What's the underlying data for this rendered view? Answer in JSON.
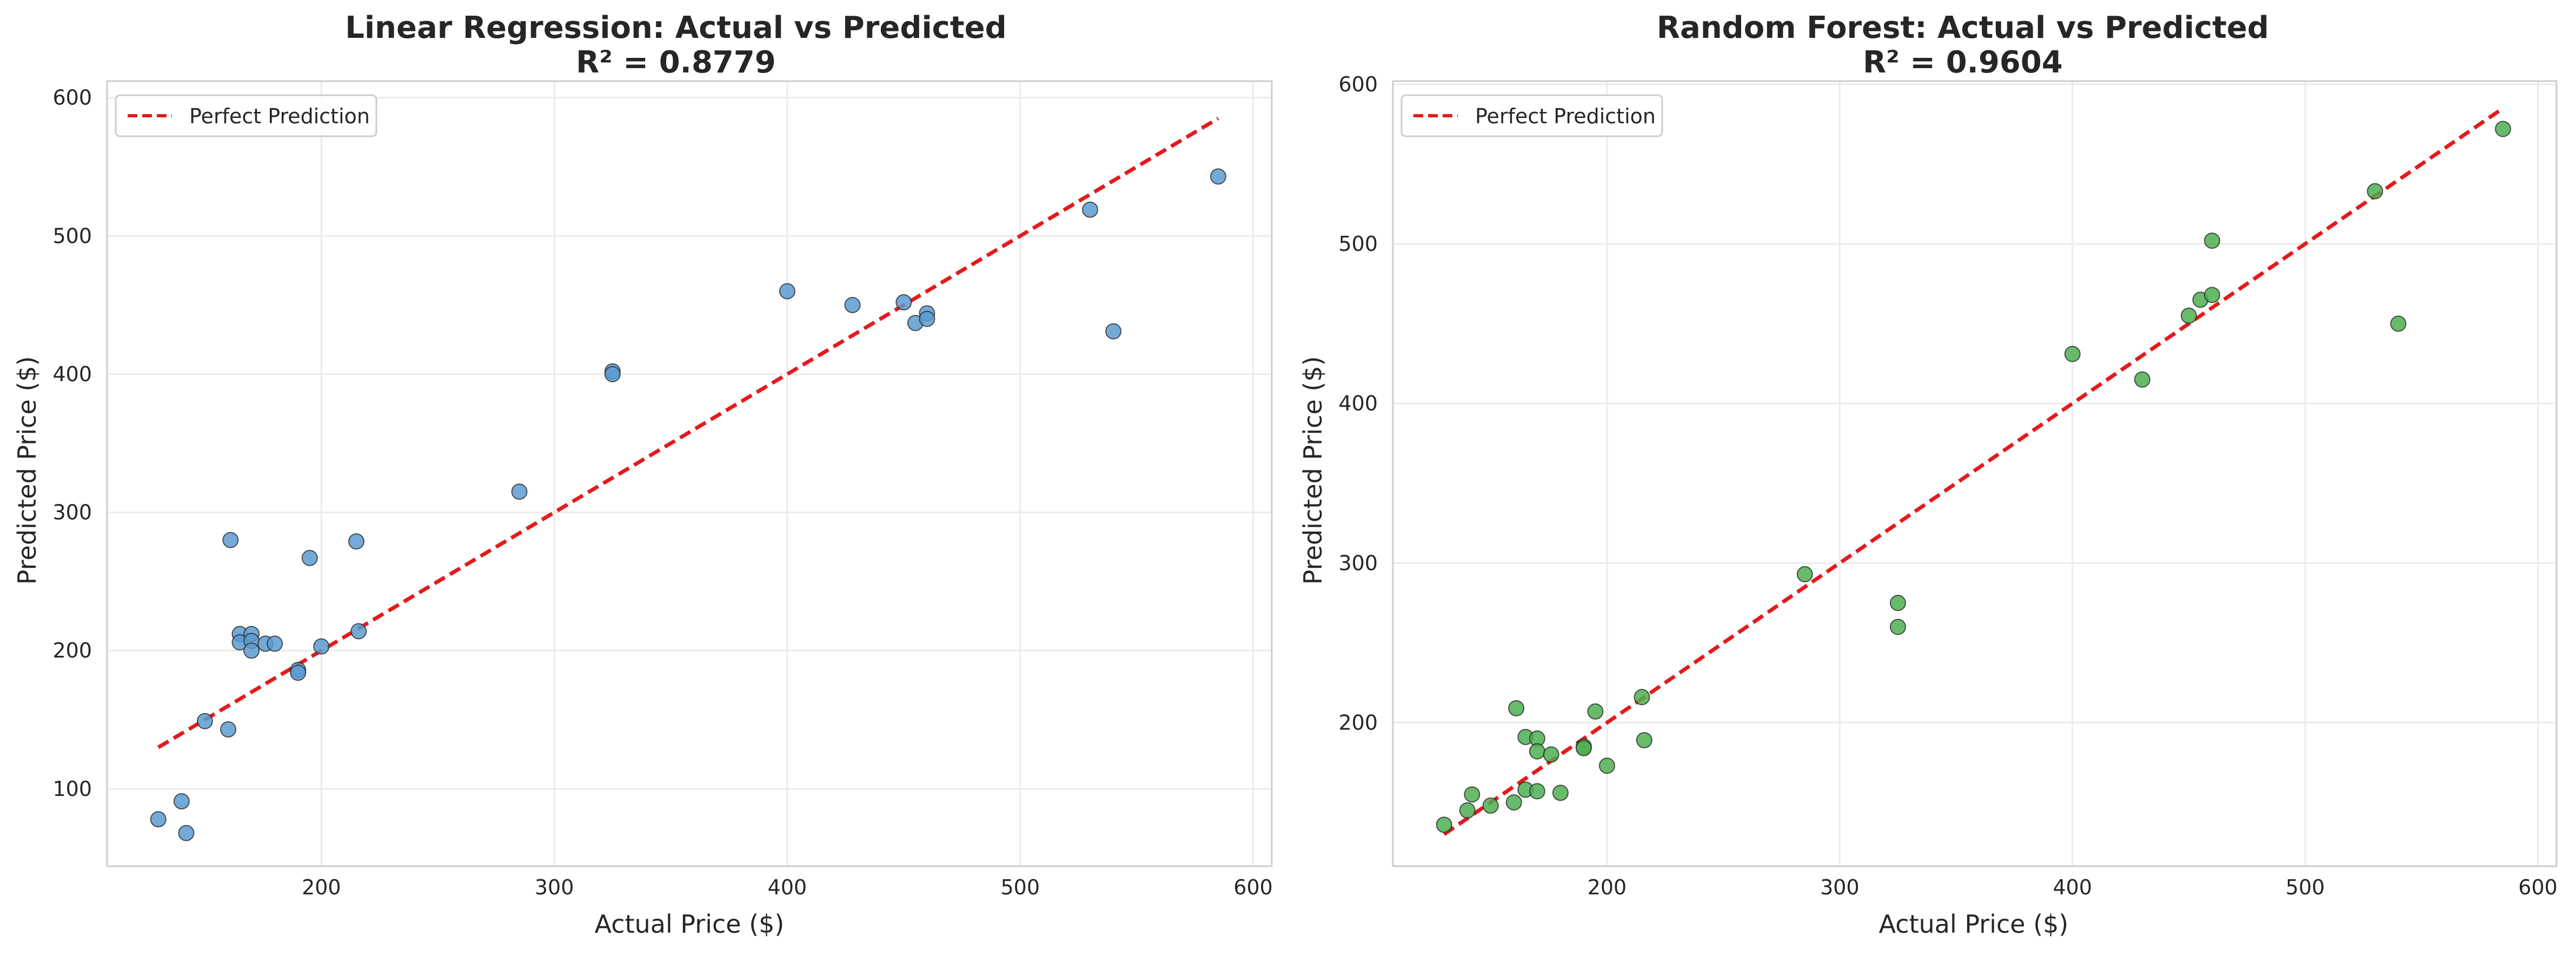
{
  "chart_data": [
    {
      "type": "scatter",
      "title": "Linear Regression: Actual vs Predicted",
      "subtitle": "R² = 0.8779",
      "xlabel": "Actual Price ($)",
      "ylabel": "Predicted Price ($)",
      "xlim": [
        108,
        608
      ],
      "ylim": [
        44,
        612
      ],
      "xticks": [
        200,
        300,
        400,
        500,
        600
      ],
      "yticks": [
        100,
        200,
        300,
        400,
        500,
        600
      ],
      "grid": true,
      "legend": {
        "placement": "top-left",
        "entries": [
          "Perfect Prediction"
        ]
      },
      "reference_line": {
        "name": "Perfect Prediction",
        "x": [
          130,
          585
        ],
        "y": [
          130,
          585
        ],
        "color": "#e41a1c",
        "style": "dashed"
      },
      "series": [
        {
          "color": "#5a9bd0",
          "points": [
            [
              130,
              78
            ],
            [
              140,
              91
            ],
            [
              142,
              68
            ],
            [
              150,
              149
            ],
            [
              160,
              143
            ],
            [
              161,
              280
            ],
            [
              165,
              212
            ],
            [
              165,
              206
            ],
            [
              170,
              212
            ],
            [
              170,
              207
            ],
            [
              170,
              200
            ],
            [
              176,
              205
            ],
            [
              180,
              205
            ],
            [
              190,
              186
            ],
            [
              190,
              184
            ],
            [
              195,
              267
            ],
            [
              200,
              203
            ],
            [
              215,
              279
            ],
            [
              216,
              214
            ],
            [
              285,
              315
            ],
            [
              325,
              402
            ],
            [
              325,
              400
            ],
            [
              400,
              460
            ],
            [
              428,
              450
            ],
            [
              450,
              452
            ],
            [
              455,
              437
            ],
            [
              460,
              444
            ],
            [
              460,
              440
            ],
            [
              530,
              519
            ],
            [
              540,
              431
            ],
            [
              585,
              543
            ]
          ]
        }
      ]
    },
    {
      "type": "scatter",
      "title": "Random Forest: Actual vs Predicted",
      "subtitle": "R² = 0.9604",
      "xlabel": "Actual Price ($)",
      "ylabel": "Predicted Price ($)",
      "xlim": [
        108,
        608
      ],
      "ylim": [
        110,
        602
      ],
      "xticks": [
        200,
        300,
        400,
        500,
        600
      ],
      "yticks": [
        200,
        300,
        400,
        500,
        600
      ],
      "grid": true,
      "legend": {
        "placement": "top-left",
        "entries": [
          "Perfect Prediction"
        ]
      },
      "reference_line": {
        "name": "Perfect Prediction",
        "x": [
          130,
          585
        ],
        "y": [
          130,
          585
        ],
        "color": "#e41a1c",
        "style": "dashed"
      },
      "series": [
        {
          "color": "#4caf50",
          "points": [
            [
              130,
              136
            ],
            [
              140,
              145
            ],
            [
              142,
              155
            ],
            [
              150,
              148
            ],
            [
              160,
              150
            ],
            [
              161,
              209
            ],
            [
              165,
              191
            ],
            [
              165,
              158
            ],
            [
              170,
              190
            ],
            [
              170,
              182
            ],
            [
              170,
              157
            ],
            [
              176,
              180
            ],
            [
              180,
              156
            ],
            [
              190,
              185
            ],
            [
              190,
              184
            ],
            [
              195,
              207
            ],
            [
              200,
              173
            ],
            [
              215,
              216
            ],
            [
              216,
              189
            ],
            [
              285,
              293
            ],
            [
              325,
              275
            ],
            [
              325,
              260
            ],
            [
              400,
              431
            ],
            [
              430,
              415
            ],
            [
              450,
              455
            ],
            [
              455,
              465
            ],
            [
              460,
              502
            ],
            [
              460,
              468
            ],
            [
              530,
              533
            ],
            [
              540,
              450
            ],
            [
              585,
              572
            ]
          ]
        }
      ]
    }
  ]
}
